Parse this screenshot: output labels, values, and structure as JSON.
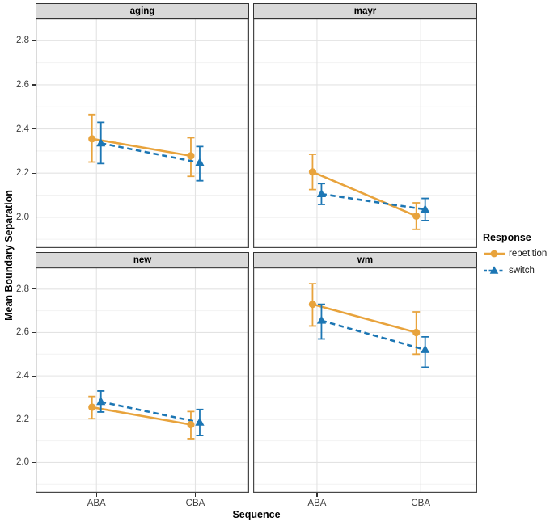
{
  "chart_data": {
    "type": "line",
    "title": "",
    "xlabel": "Sequence",
    "ylabel": "Mean Boundary Separation",
    "x_categories": [
      "ABA",
      "CBA"
    ],
    "y_tick_labels": [
      "2.0",
      "2.2",
      "2.4",
      "2.6",
      "2.8"
    ],
    "ylim": [
      1.86,
      2.9
    ],
    "grid": "major and minor horizontal, major vertical at categories",
    "legend": {
      "title": "Response",
      "position": "right"
    },
    "series_styles": [
      {
        "name": "repetition",
        "color": "#E8A33C",
        "marker": "circle",
        "linetype": "solid"
      },
      {
        "name": "switch",
        "color": "#1C76B4",
        "marker": "triangle",
        "linetype": "dashed"
      }
    ],
    "facets": [
      {
        "label": "aging",
        "series": [
          {
            "name": "repetition",
            "values": [
              2.355,
              2.278
            ],
            "err_low": [
              2.25,
              2.185
            ],
            "err_high": [
              2.465,
              2.36
            ]
          },
          {
            "name": "switch",
            "values": [
              2.335,
              2.247
            ],
            "err_low": [
              2.243,
              2.165
            ],
            "err_high": [
              2.43,
              2.32
            ]
          }
        ]
      },
      {
        "label": "mayr",
        "series": [
          {
            "name": "repetition",
            "values": [
              2.205,
              2.005
            ],
            "err_low": [
              2.125,
              1.945
            ],
            "err_high": [
              2.285,
              2.065
            ]
          },
          {
            "name": "switch",
            "values": [
              2.105,
              2.035
            ],
            "err_low": [
              2.058,
              1.985
            ],
            "err_high": [
              2.152,
              2.085
            ]
          }
        ]
      },
      {
        "label": "new",
        "series": [
          {
            "name": "repetition",
            "values": [
              2.255,
              2.175
            ],
            "err_low": [
              2.202,
              2.11
            ],
            "err_high": [
              2.305,
              2.235
            ]
          },
          {
            "name": "switch",
            "values": [
              2.28,
              2.185
            ],
            "err_low": [
              2.233,
              2.125
            ],
            "err_high": [
              2.33,
              2.245
            ]
          }
        ]
      },
      {
        "label": "wm",
        "series": [
          {
            "name": "repetition",
            "values": [
              2.73,
              2.6
            ],
            "err_low": [
              2.63,
              2.5
            ],
            "err_high": [
              2.825,
              2.695
            ]
          },
          {
            "name": "switch",
            "values": [
              2.655,
              2.52
            ],
            "err_low": [
              2.57,
              2.44
            ],
            "err_high": [
              2.73,
              2.58
            ]
          }
        ]
      }
    ]
  },
  "theme": {
    "strip_bg": "#D9D9D9",
    "panel_border": "#474747",
    "grid_major": "#E3E3E3",
    "grid_minor": "#F2F2F2",
    "tick_color": "#333333",
    "tick_label_color": "#3d3d3d"
  }
}
